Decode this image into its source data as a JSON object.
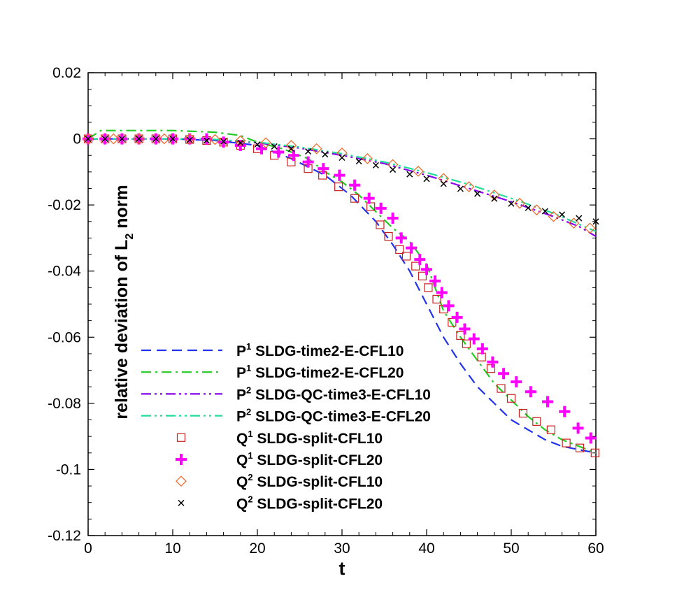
{
  "chart_data": {
    "type": "line",
    "title": "",
    "xlabel": "t",
    "ylabel": "relative deviation of L",
    "ylabel_sub": "2",
    "ylabel_suffix": " norm",
    "xlim": [
      0,
      60
    ],
    "ylim": [
      -0.12,
      0.02
    ],
    "xticks": [
      0,
      10,
      20,
      30,
      40,
      50,
      60
    ],
    "xtick_labels": [
      "0",
      "10",
      "20",
      "30",
      "40",
      "50",
      "60"
    ],
    "yticks": [
      0.02,
      0,
      -0.02,
      -0.04,
      -0.06,
      -0.08,
      -0.1,
      -0.12
    ],
    "ytick_labels": [
      "0.02",
      "0",
      "-0.02",
      "-0.04",
      "-0.06",
      "-0.08",
      "-0.1",
      "-0.12"
    ],
    "grid": false,
    "legend_position": "lower-left",
    "series": [
      {
        "name": "SLDG-time2-E-CFL10",
        "prefix": "P",
        "sup": "1",
        "kind": "line",
        "color": "#2233ee",
        "dash": "dashed",
        "x": [
          0,
          5,
          10,
          15,
          20,
          24,
          28,
          31,
          34,
          36,
          38,
          40,
          42,
          44,
          46,
          48,
          50,
          52,
          54,
          56,
          58,
          60
        ],
        "y": [
          0,
          0,
          0,
          -0.0005,
          -0.002,
          -0.006,
          -0.011,
          -0.017,
          -0.025,
          -0.032,
          -0.04,
          -0.05,
          -0.06,
          -0.068,
          -0.075,
          -0.08,
          -0.085,
          -0.088,
          -0.091,
          -0.093,
          -0.094,
          -0.095
        ]
      },
      {
        "name": "SLDG-time2-E-CFL20",
        "prefix": "P",
        "sup": "1",
        "kind": "line",
        "color": "#22cc22",
        "dash": "dashdot",
        "x": [
          0,
          1.5,
          5,
          10,
          15,
          18,
          20,
          23,
          26,
          28,
          30,
          32,
          34,
          36,
          38,
          40,
          42,
          44,
          46,
          48,
          50,
          52,
          54,
          56,
          58,
          60
        ],
        "y": [
          0,
          0.0025,
          0.0025,
          0.0025,
          0.002,
          0.001,
          -0.001,
          -0.003,
          -0.006,
          -0.01,
          -0.013,
          -0.017,
          -0.022,
          -0.027,
          -0.031,
          -0.038,
          -0.052,
          -0.06,
          -0.067,
          -0.074,
          -0.079,
          -0.084,
          -0.088,
          -0.091,
          -0.093,
          -0.095
        ]
      },
      {
        "name": "SLDG-QC-time3-E-CFL10",
        "prefix": "P",
        "sup": "2",
        "kind": "line",
        "color": "#8800ee",
        "dash": "dashdotdot",
        "x": [
          0,
          5,
          10,
          15,
          20,
          25,
          30,
          35,
          40,
          45,
          50,
          55,
          58,
          60
        ],
        "y": [
          0,
          0,
          0,
          -0.0003,
          -0.0012,
          -0.0028,
          -0.005,
          -0.0075,
          -0.011,
          -0.015,
          -0.019,
          -0.0235,
          -0.0265,
          -0.0295
        ]
      },
      {
        "name": "SLDG-QC-time3-E-CFL20",
        "prefix": "P",
        "sup": "2",
        "kind": "line",
        "color": "#22dd99",
        "dash": "dashdotdot",
        "x": [
          0,
          5,
          10,
          15,
          20,
          25,
          30,
          35,
          40,
          45,
          50,
          55,
          60
        ],
        "y": [
          0,
          0,
          0,
          -0.0002,
          -0.001,
          -0.0025,
          -0.0045,
          -0.007,
          -0.0102,
          -0.0138,
          -0.018,
          -0.0225,
          -0.028
        ]
      },
      {
        "name": "SLDG-split-CFL10",
        "prefix": "Q",
        "sup": "1",
        "kind": "marker",
        "marker": "square",
        "color": "#cc2222",
        "x": [
          0,
          2,
          4,
          6,
          8,
          10,
          12,
          14,
          16,
          18,
          20,
          22,
          24,
          26,
          27.7,
          29.6,
          31.5,
          33.4,
          34.5,
          35.5,
          36.8,
          37.6,
          38.7,
          39.5,
          40.2,
          41.2,
          42.0,
          43.0,
          44.0,
          44.7,
          46.5,
          47.6,
          48.8,
          50.0,
          51.4,
          53.0,
          54.7,
          56.5,
          58.1,
          59.9
        ],
        "y": [
          0,
          0,
          0,
          0,
          0,
          0,
          -0.0002,
          -0.0005,
          -0.001,
          -0.002,
          -0.003,
          -0.005,
          -0.007,
          -0.009,
          -0.011,
          -0.0145,
          -0.018,
          -0.0205,
          -0.026,
          -0.0295,
          -0.0335,
          -0.0355,
          -0.0385,
          -0.0415,
          -0.045,
          -0.0485,
          -0.0515,
          -0.0555,
          -0.0595,
          -0.062,
          -0.066,
          -0.0695,
          -0.0755,
          -0.0785,
          -0.083,
          -0.0855,
          -0.088,
          -0.092,
          -0.0935,
          -0.095
        ]
      },
      {
        "name": "SLDG-split-CFL20",
        "prefix": "Q",
        "sup": "1",
        "kind": "marker",
        "marker": "plus",
        "color": "#ff00ff",
        "x": [
          0,
          2,
          4,
          6,
          8,
          10,
          12,
          14,
          16,
          18,
          20.5,
          22.5,
          24.3,
          26,
          27.8,
          29.7,
          31.5,
          33.2,
          34.6,
          36,
          37,
          38.2,
          39.2,
          40,
          41,
          41.8,
          42.6,
          43.6,
          44.5,
          45.6,
          46.6,
          47.8,
          49.1,
          50.6,
          52.3,
          54.3,
          56.3,
          57.9,
          59.4
        ],
        "y": [
          0,
          0,
          0,
          0,
          0,
          0,
          0,
          0,
          -0.001,
          -0.002,
          -0.003,
          -0.004,
          -0.005,
          -0.007,
          -0.009,
          -0.011,
          -0.014,
          -0.018,
          -0.021,
          -0.024,
          -0.03,
          -0.033,
          -0.0365,
          -0.0395,
          -0.043,
          -0.0465,
          -0.0505,
          -0.054,
          -0.0575,
          -0.0605,
          -0.0635,
          -0.0675,
          -0.071,
          -0.0735,
          -0.0765,
          -0.0795,
          -0.0825,
          -0.0875,
          -0.0905
        ]
      },
      {
        "name": "SLDG-split-CFL10",
        "prefix": "Q",
        "sup": "2",
        "kind": "marker",
        "marker": "diamond",
        "color": "#ee6622",
        "x": [
          0,
          3,
          6,
          9,
          12,
          15,
          18,
          21,
          24,
          27,
          30,
          33,
          36,
          39,
          42,
          45,
          48,
          51,
          53,
          55,
          57.4,
          59.3
        ],
        "y": [
          0,
          0,
          0,
          0,
          0,
          -0.0002,
          -0.0006,
          -0.0012,
          -0.002,
          -0.003,
          -0.0043,
          -0.006,
          -0.0078,
          -0.0098,
          -0.012,
          -0.0145,
          -0.017,
          -0.0195,
          -0.0215,
          -0.0235,
          -0.0255,
          -0.027
        ]
      },
      {
        "name": "SLDG-split-CFL20",
        "prefix": "Q",
        "sup": "2",
        "kind": "marker",
        "marker": "x",
        "color": "#000000",
        "x": [
          0,
          2,
          4,
          6,
          8,
          10,
          12,
          14,
          16,
          18,
          20,
          22,
          24,
          26,
          28,
          30,
          32,
          34,
          36,
          38,
          40,
          42,
          44,
          46,
          48,
          50,
          52,
          54,
          56,
          58,
          60
        ],
        "y": [
          0,
          0,
          0,
          0,
          0,
          0,
          -0.0003,
          -0.0005,
          -0.0008,
          -0.0012,
          -0.0017,
          -0.0023,
          -0.003,
          -0.0038,
          -0.0047,
          -0.0057,
          -0.0068,
          -0.008,
          -0.0093,
          -0.0107,
          -0.0121,
          -0.0136,
          -0.0151,
          -0.0166,
          -0.0181,
          -0.0196,
          -0.0209,
          -0.0219,
          -0.0229,
          -0.024,
          -0.025
        ]
      }
    ]
  }
}
